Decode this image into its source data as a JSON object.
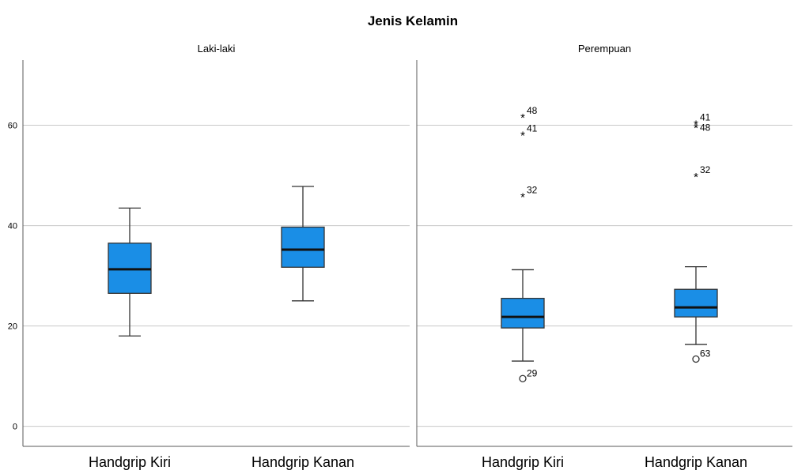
{
  "chart_data": {
    "type": "boxplot",
    "title": "Jenis Kelamin",
    "ylim": [
      -4,
      73
    ],
    "yticks": [
      0,
      20,
      40,
      60
    ],
    "grid": true,
    "box_color": "#1a8ee6",
    "categories": [
      "Handgrip Kiri",
      "Handgrip Kanan"
    ],
    "panels": [
      {
        "name": "Laki-laki",
        "boxes": [
          {
            "category": "Handgrip Kiri",
            "min": 18,
            "q1": 26.5,
            "median": 31.3,
            "q3": 36.5,
            "max": 43.5,
            "outliers": []
          },
          {
            "category": "Handgrip Kanan",
            "min": 25,
            "q1": 31.7,
            "median": 35.2,
            "q3": 39.7,
            "max": 47.8,
            "outliers": []
          }
        ]
      },
      {
        "name": "Perempuan",
        "boxes": [
          {
            "category": "Handgrip Kiri",
            "min": 13,
            "q1": 19.6,
            "median": 21.8,
            "q3": 25.5,
            "max": 31.2,
            "outliers": [
              {
                "value": 61.8,
                "label": "48",
                "kind": "extreme"
              },
              {
                "value": 58.3,
                "label": "41",
                "kind": "extreme"
              },
              {
                "value": 46,
                "label": "32",
                "kind": "extreme"
              },
              {
                "value": 9.5,
                "label": "29",
                "kind": "outlier"
              }
            ]
          },
          {
            "category": "Handgrip Kanan",
            "min": 16.3,
            "q1": 21.8,
            "median": 23.7,
            "q3": 27.3,
            "max": 31.8,
            "outliers": [
              {
                "value": 60.5,
                "label": "41",
                "kind": "extreme"
              },
              {
                "value": 59.8,
                "label": "48",
                "kind": "extreme"
              },
              {
                "value": 50,
                "label": "32",
                "kind": "extreme"
              },
              {
                "value": 13.4,
                "label": "63",
                "kind": "outlier"
              }
            ]
          }
        ]
      }
    ]
  }
}
